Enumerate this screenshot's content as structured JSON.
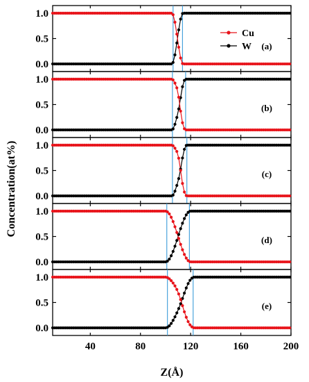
{
  "chart_data": {
    "type": "line",
    "xlabel": "Z(Å)",
    "ylabel": "Concentration(at%)",
    "xlim": [
      10,
      200
    ],
    "ylim": [
      -0.15,
      1.15
    ],
    "x_ticks": [
      {
        "value": 40,
        "label": "40"
      },
      {
        "value": 80,
        "label": "80"
      },
      {
        "value": 120,
        "label": "120"
      },
      {
        "value": 160,
        "label": "160"
      },
      {
        "value": 200,
        "label": "200"
      }
    ],
    "y_ticks": [
      {
        "value": 1.0,
        "label": "1.0"
      },
      {
        "value": 0.5,
        "label": "0.5"
      },
      {
        "value": 0.0,
        "label": "0.0"
      }
    ],
    "legend": {
      "placement": "top-right",
      "entries": [
        {
          "name": "Cu",
          "color": "#e8141b"
        },
        {
          "name": "W",
          "color": "#000000"
        }
      ]
    },
    "colors": {
      "cu": "#e8141b",
      "w": "#000000",
      "marker_line": "#3a9bd9"
    },
    "x_step": 1.5,
    "panels": [
      {
        "label": "(a)",
        "transition_start": 105,
        "transition_end": 114,
        "center": 109.5,
        "bump": 0.0,
        "markers": [
          106,
          113.5
        ]
      },
      {
        "label": "(b)",
        "transition_start": 105,
        "transition_end": 116,
        "center": 110.5,
        "bump": 0.15,
        "markers": [
          105.5,
          116
        ]
      },
      {
        "label": "(c)",
        "transition_start": 105,
        "transition_end": 117,
        "center": 111,
        "bump": 0.18,
        "markers": [
          105.5,
          117
        ]
      },
      {
        "label": "(d)",
        "transition_start": 100,
        "transition_end": 120,
        "center": 110,
        "bump": 0.0,
        "markers": [
          101,
          119
        ]
      },
      {
        "label": "(e)",
        "transition_start": 100,
        "transition_end": 123,
        "center": 112,
        "bump": 0.1,
        "markers": [
          101.5,
          122
        ]
      }
    ]
  }
}
